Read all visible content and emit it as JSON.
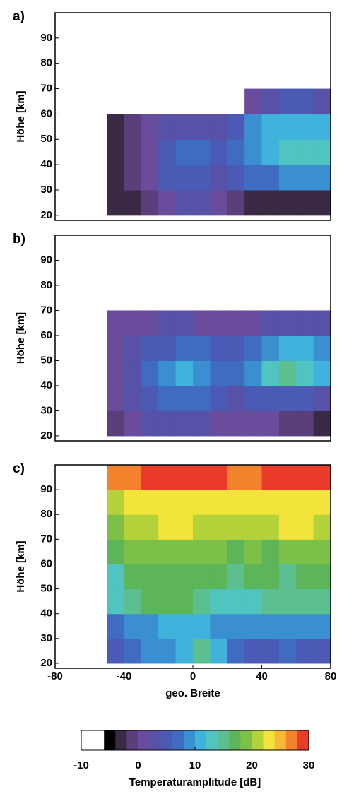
{
  "chart_data": {
    "type": "contour",
    "ylabel": "Höhe [km]",
    "xlabel": "geo. Breite",
    "panels": [
      {
        "label": "a)",
        "xlim": [
          -80,
          80
        ],
        "ylim": [
          18,
          100
        ],
        "yticks": [
          20,
          30,
          40,
          50,
          60,
          70,
          80,
          90
        ],
        "x_edges": [
          -50,
          -40,
          -30,
          -20,
          -10,
          0,
          10,
          20,
          30,
          40,
          50,
          60,
          70,
          80
        ],
        "y_edges": [
          20,
          30,
          40,
          50,
          60,
          70
        ],
        "z": [
          [
            -4,
            -3,
            -2,
            0,
            2,
            2,
            0,
            -2,
            -3,
            -3,
            -3,
            -3,
            -3
          ],
          [
            -4,
            -2,
            1,
            4,
            5,
            5,
            3,
            4,
            6,
            7,
            8,
            8,
            8
          ],
          [
            -4,
            -2,
            1,
            4,
            6,
            6,
            4,
            6,
            9,
            11,
            12,
            12,
            12
          ],
          [
            -4,
            -2,
            0,
            2,
            3,
            3,
            3,
            5,
            8,
            10,
            11,
            11,
            10
          ],
          [
            null,
            null,
            null,
            null,
            null,
            null,
            null,
            null,
            1,
            3,
            4,
            4,
            3
          ]
        ]
      },
      {
        "label": "b)",
        "xlim": [
          -80,
          80
        ],
        "ylim": [
          18,
          100
        ],
        "yticks": [
          20,
          30,
          40,
          50,
          60,
          70,
          80,
          90
        ],
        "x_edges": [
          -50,
          -40,
          -30,
          -20,
          -10,
          0,
          10,
          20,
          30,
          40,
          50,
          60,
          70,
          80
        ],
        "y_edges": [
          20,
          30,
          40,
          50,
          60,
          70
        ],
        "z": [
          [
            -2,
            0,
            2,
            3,
            3,
            2,
            1,
            0,
            0,
            0,
            -1,
            -2,
            -3
          ],
          [
            0,
            2,
            4,
            6,
            7,
            6,
            4,
            3,
            4,
            5,
            5,
            4,
            3
          ],
          [
            0,
            3,
            6,
            9,
            10,
            9,
            7,
            6,
            9,
            12,
            14,
            13,
            10
          ],
          [
            0,
            2,
            4,
            5,
            6,
            6,
            5,
            4,
            6,
            9,
            11,
            11,
            9
          ],
          [
            0,
            1,
            1,
            2,
            2,
            1,
            0,
            0,
            1,
            2,
            3,
            3,
            3
          ]
        ]
      },
      {
        "label": "c)",
        "xlim": [
          -80,
          80
        ],
        "ylim": [
          18,
          100
        ],
        "yticks": [
          20,
          30,
          40,
          50,
          60,
          70,
          80,
          90
        ],
        "xticks": [
          -80,
          -40,
          0,
          40,
          80
        ],
        "x_edges": [
          -50,
          -40,
          -30,
          -20,
          -10,
          0,
          10,
          20,
          30,
          40,
          50,
          60,
          70,
          80
        ],
        "y_edges": [
          20,
          30,
          40,
          50,
          60,
          70,
          80,
          90,
          100
        ],
        "z": [
          [
            5,
            7,
            8,
            8,
            11,
            14,
            10,
            6,
            5,
            5,
            6,
            5,
            4
          ],
          [
            7,
            8,
            9,
            10,
            10,
            10,
            9,
            8,
            8,
            9,
            9,
            9,
            8
          ],
          [
            12,
            14,
            16,
            16,
            16,
            15,
            13,
            12,
            13,
            14,
            14,
            14,
            14
          ],
          [
            13,
            16,
            17,
            17,
            16,
            16,
            16,
            15,
            16,
            16,
            15,
            16,
            16
          ],
          [
            17,
            18,
            19,
            19,
            19,
            18,
            18,
            17,
            18,
            17,
            18,
            19,
            19
          ],
          [
            18,
            20,
            21,
            23,
            23,
            21,
            20,
            20,
            21,
            20,
            22,
            22,
            21
          ],
          [
            21,
            22,
            22,
            23,
            23,
            22,
            22,
            22,
            22,
            22,
            22,
            22,
            22
          ],
          [
            26,
            27,
            28,
            28,
            28,
            29,
            28,
            27,
            27,
            28,
            28,
            28,
            28
          ]
        ]
      }
    ],
    "colorbar": {
      "label": "Temperaturamplitude [dB]",
      "ticks": [
        -10,
        0,
        10,
        20,
        30
      ],
      "levels": [
        -10,
        -8,
        -6,
        -4,
        -2,
        0,
        2,
        4,
        6,
        8,
        10,
        12,
        14,
        16,
        18,
        20,
        22,
        24,
        26,
        28,
        30
      ],
      "colors": [
        "#ffffff",
        "#ffffff",
        "#000000",
        "#3b2a45",
        "#5a3f7a",
        "#6a4c9c",
        "#5751a8",
        "#4a5ab5",
        "#3f6cc0",
        "#3a8fd0",
        "#3fb3dc",
        "#4fc4c0",
        "#5cbf90",
        "#5db55a",
        "#7cc048",
        "#b4d23a",
        "#f2e43a",
        "#f6b935",
        "#f3822c",
        "#ea3b2a"
      ]
    }
  }
}
